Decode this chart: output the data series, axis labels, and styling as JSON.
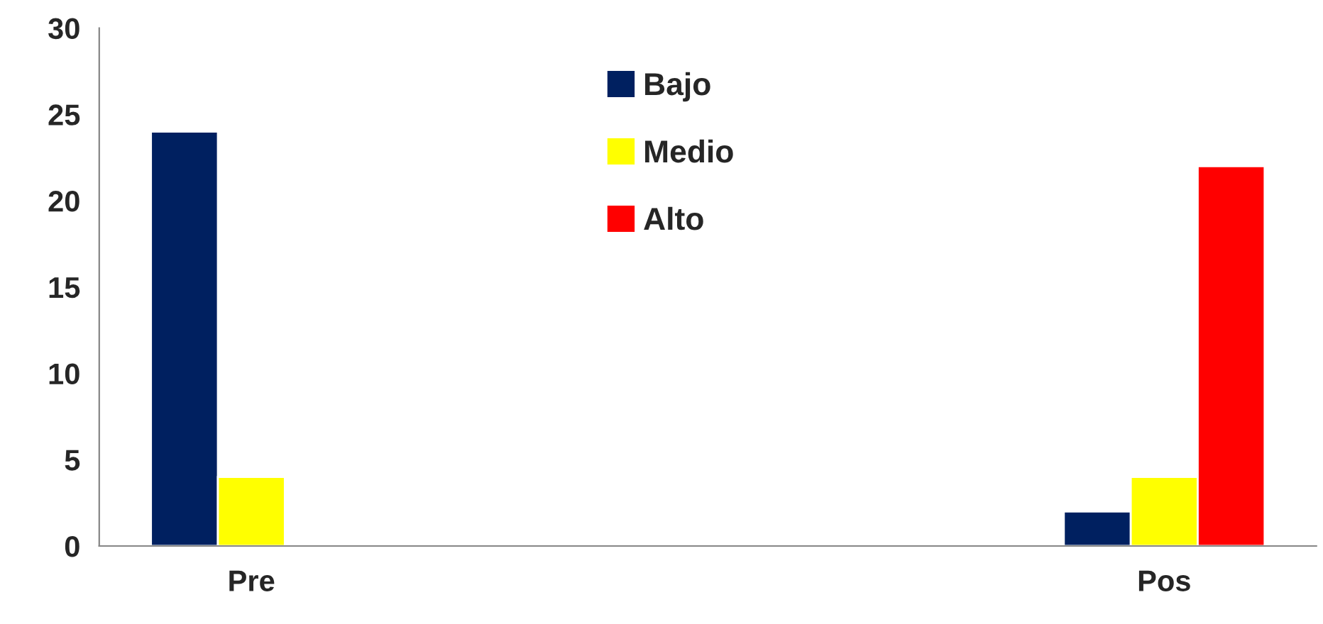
{
  "chart_data": {
    "type": "bar",
    "categories": [
      "Pre",
      null,
      null,
      "Pos"
    ],
    "series": [
      {
        "name": "Bajo",
        "color": "#002060",
        "values": [
          24,
          null,
          null,
          2
        ]
      },
      {
        "name": "Medio",
        "color": "#ffff00",
        "values": [
          4,
          null,
          null,
          4
        ]
      },
      {
        "name": "Alto",
        "color": "#ff0000",
        "values": [
          null,
          null,
          null,
          22
        ]
      }
    ],
    "ylim": [
      0,
      30
    ],
    "yticks": [
      0,
      5,
      10,
      15,
      20,
      25,
      30
    ],
    "grid": false,
    "legend": "top"
  }
}
